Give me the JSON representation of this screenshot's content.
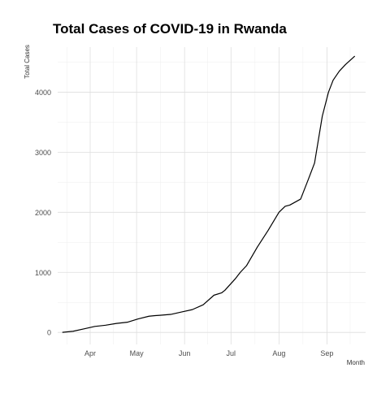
{
  "chart_data": {
    "type": "line",
    "title": "Total Cases of COVID-19 in Rwanda",
    "xlabel": "Month",
    "ylabel": "Total Cases",
    "x_tick_labels": [
      {
        "label": "Apr",
        "date": "2020-04-01"
      },
      {
        "label": "May",
        "date": "2020-05-01"
      },
      {
        "label": "Jun",
        "date": "2020-06-01"
      },
      {
        "label": "Jul",
        "date": "2020-07-01"
      },
      {
        "label": "Aug",
        "date": "2020-08-01"
      },
      {
        "label": "Sep",
        "date": "2020-09-01"
      }
    ],
    "y_ticks": [
      0,
      1000,
      2000,
      3000,
      4000
    ],
    "xlim": [
      "2020-03-11",
      "2020-09-26"
    ],
    "ylim": [
      -200,
      4750
    ],
    "grid": true,
    "legend": "none",
    "line_color": "#000000",
    "series": [
      {
        "x": [
          "2020-03-14",
          "2020-03-21",
          "2020-03-28",
          "2020-04-04",
          "2020-04-11",
          "2020-04-18",
          "2020-04-25",
          "2020-05-02",
          "2020-05-09",
          "2020-05-13",
          "2020-05-16",
          "2020-05-23",
          "2020-05-30",
          "2020-06-06",
          "2020-06-13",
          "2020-06-20",
          "2020-06-25",
          "2020-06-27",
          "2020-07-04",
          "2020-07-07",
          "2020-07-11",
          "2020-07-18",
          "2020-07-25",
          "2020-08-01",
          "2020-08-05",
          "2020-08-08",
          "2020-08-15",
          "2020-08-20",
          "2020-08-24",
          "2020-08-29",
          "2020-09-02",
          "2020-09-05",
          "2020-09-09",
          "2020-09-13",
          "2020-09-19"
        ],
        "y": [
          1,
          20,
          60,
          100,
          120,
          150,
          170,
          225,
          270,
          280,
          285,
          300,
          340,
          380,
          460,
          620,
          660,
          700,
          900,
          1000,
          1110,
          1420,
          1700,
          2000,
          2100,
          2120,
          2220,
          2550,
          2820,
          3600,
          4000,
          4200,
          4350,
          4460,
          4600
        ]
      }
    ]
  }
}
